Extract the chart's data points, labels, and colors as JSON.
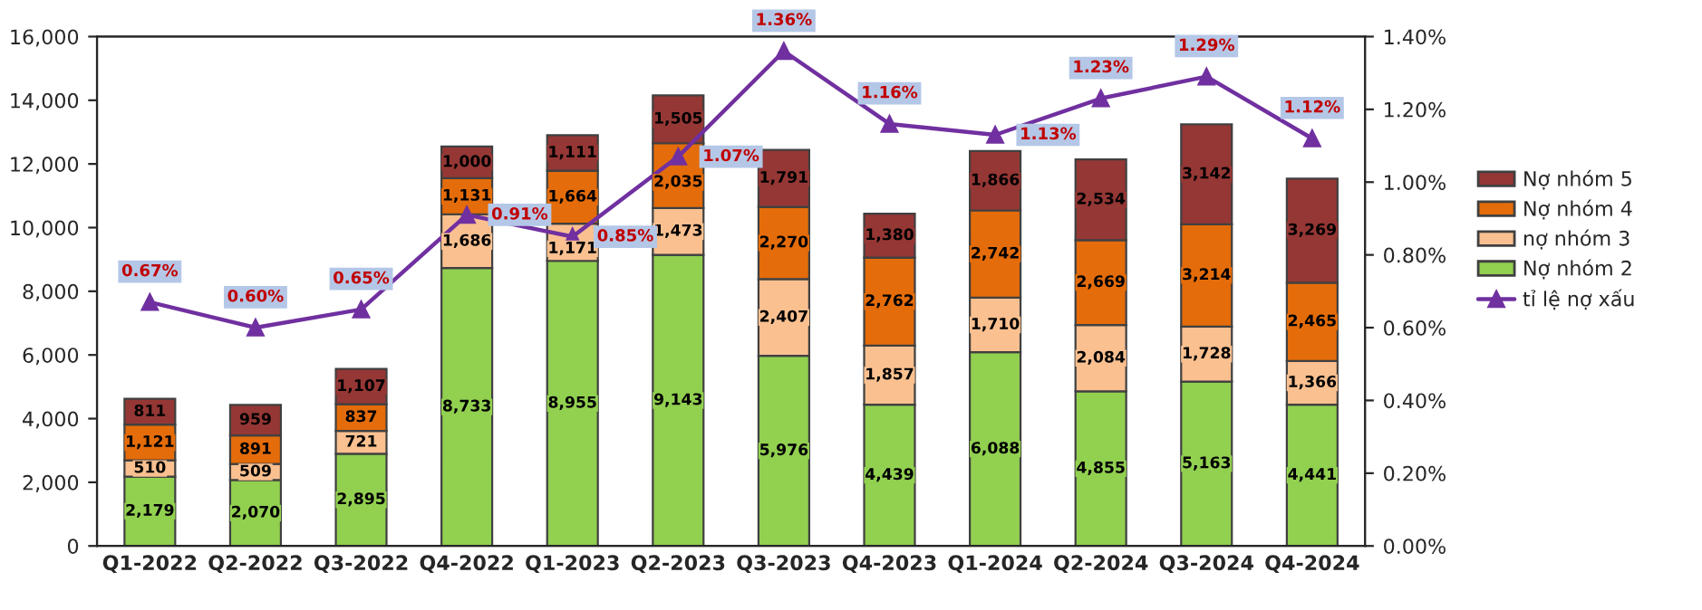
{
  "chart_data": {
    "type": "bar",
    "stacked": true,
    "categories": [
      "Q1-2022",
      "Q2-2022",
      "Q3-2022",
      "Q4-2022",
      "Q1-2023",
      "Q2-2023",
      "Q3-2023",
      "Q4-2023",
      "Q1-2024",
      "Q2-2024",
      "Q3-2024",
      "Q4-2024"
    ],
    "series": [
      {
        "name": "Nợ nhóm 2",
        "color": "#92d050",
        "values": [
          2179,
          2070,
          2895,
          8733,
          8955,
          9143,
          5976,
          4439,
          6088,
          4855,
          5163,
          4441
        ],
        "value_labels": [
          "2,179",
          "2,070",
          "2,895",
          "8,733",
          "8,955",
          "9,143",
          "5,976",
          "4,439",
          "6,088",
          "4,855",
          "5,163",
          "4,441"
        ]
      },
      {
        "name": "nợ nhóm 3",
        "color": "#fac090",
        "values": [
          510,
          509,
          721,
          1686,
          1171,
          1473,
          2407,
          1857,
          1710,
          2084,
          1728,
          1366
        ],
        "value_labels": [
          "510",
          "509",
          "721",
          "1,686",
          "1,171",
          "1,473",
          "2,407",
          "1,857",
          "1,710",
          "2,084",
          "1,728",
          "1,366"
        ]
      },
      {
        "name": "Nợ nhóm 4",
        "color": "#e46c0a",
        "values": [
          1121,
          891,
          837,
          1131,
          1664,
          2035,
          2270,
          2762,
          2742,
          2669,
          3214,
          2465
        ],
        "value_labels": [
          "1,121",
          "891",
          "837",
          "1,131",
          "1,664",
          "2,035",
          "2,270",
          "2,762",
          "2,742",
          "2,669",
          "3,214",
          "2,465"
        ]
      },
      {
        "name": "Nợ nhóm 5",
        "color": "#953735",
        "values": [
          811,
          959,
          1107,
          1000,
          1111,
          1505,
          1791,
          1380,
          1866,
          2534,
          3142,
          3269
        ],
        "value_labels": [
          "811",
          "959",
          "1,107",
          "1,000",
          "1,111",
          "1,505",
          "1,791",
          "1,380",
          "1,866",
          "2,534",
          "3,142",
          "3,269"
        ]
      },
      {
        "name": "tỉ lệ nợ xấu",
        "type": "line",
        "axis": "y2",
        "marker": "triangle",
        "color": "#7030a0",
        "values": [
          0.67,
          0.6,
          0.65,
          0.91,
          0.85,
          1.07,
          1.36,
          1.16,
          1.13,
          1.23,
          1.29,
          1.12
        ],
        "value_labels": [
          "0.67%",
          "0.60%",
          "0.65%",
          "0.91%",
          "0.85%",
          "1.07%",
          "1.36%",
          "1.16%",
          "1.13%",
          "1.23%",
          "1.29%",
          "1.12%"
        ]
      }
    ],
    "ylim": [
      0,
      16000
    ],
    "yticks": [
      0,
      {
        "value": 2000,
        "label": "2,000"
      },
      {
        "value": 4000,
        "label": "4,000"
      },
      {
        "value": 6000,
        "label": "6,000"
      },
      {
        "value": 8000,
        "label": "8,000"
      },
      {
        "value": 10000,
        "label": "10,000"
      },
      {
        "value": 12000,
        "label": "12,000"
      },
      {
        "value": 14000,
        "label": "14,000"
      },
      {
        "value": 16000,
        "label": "16,000"
      }
    ],
    "y2lim": [
      0,
      1.4
    ],
    "y2ticks": [
      {
        "value": 0,
        "label": "0.00%"
      },
      {
        "value": 0.2,
        "label": "0.20%"
      },
      {
        "value": 0.4,
        "label": "0.40%"
      },
      {
        "value": 0.6,
        "label": "0.60%"
      },
      {
        "value": 0.8,
        "label": "0.80%"
      },
      {
        "value": 1.0,
        "label": "1.00%"
      },
      {
        "value": 1.2,
        "label": "1.20%"
      },
      {
        "value": 1.4,
        "label": "1.40%"
      }
    ],
    "grid": false,
    "legend": "right"
  }
}
